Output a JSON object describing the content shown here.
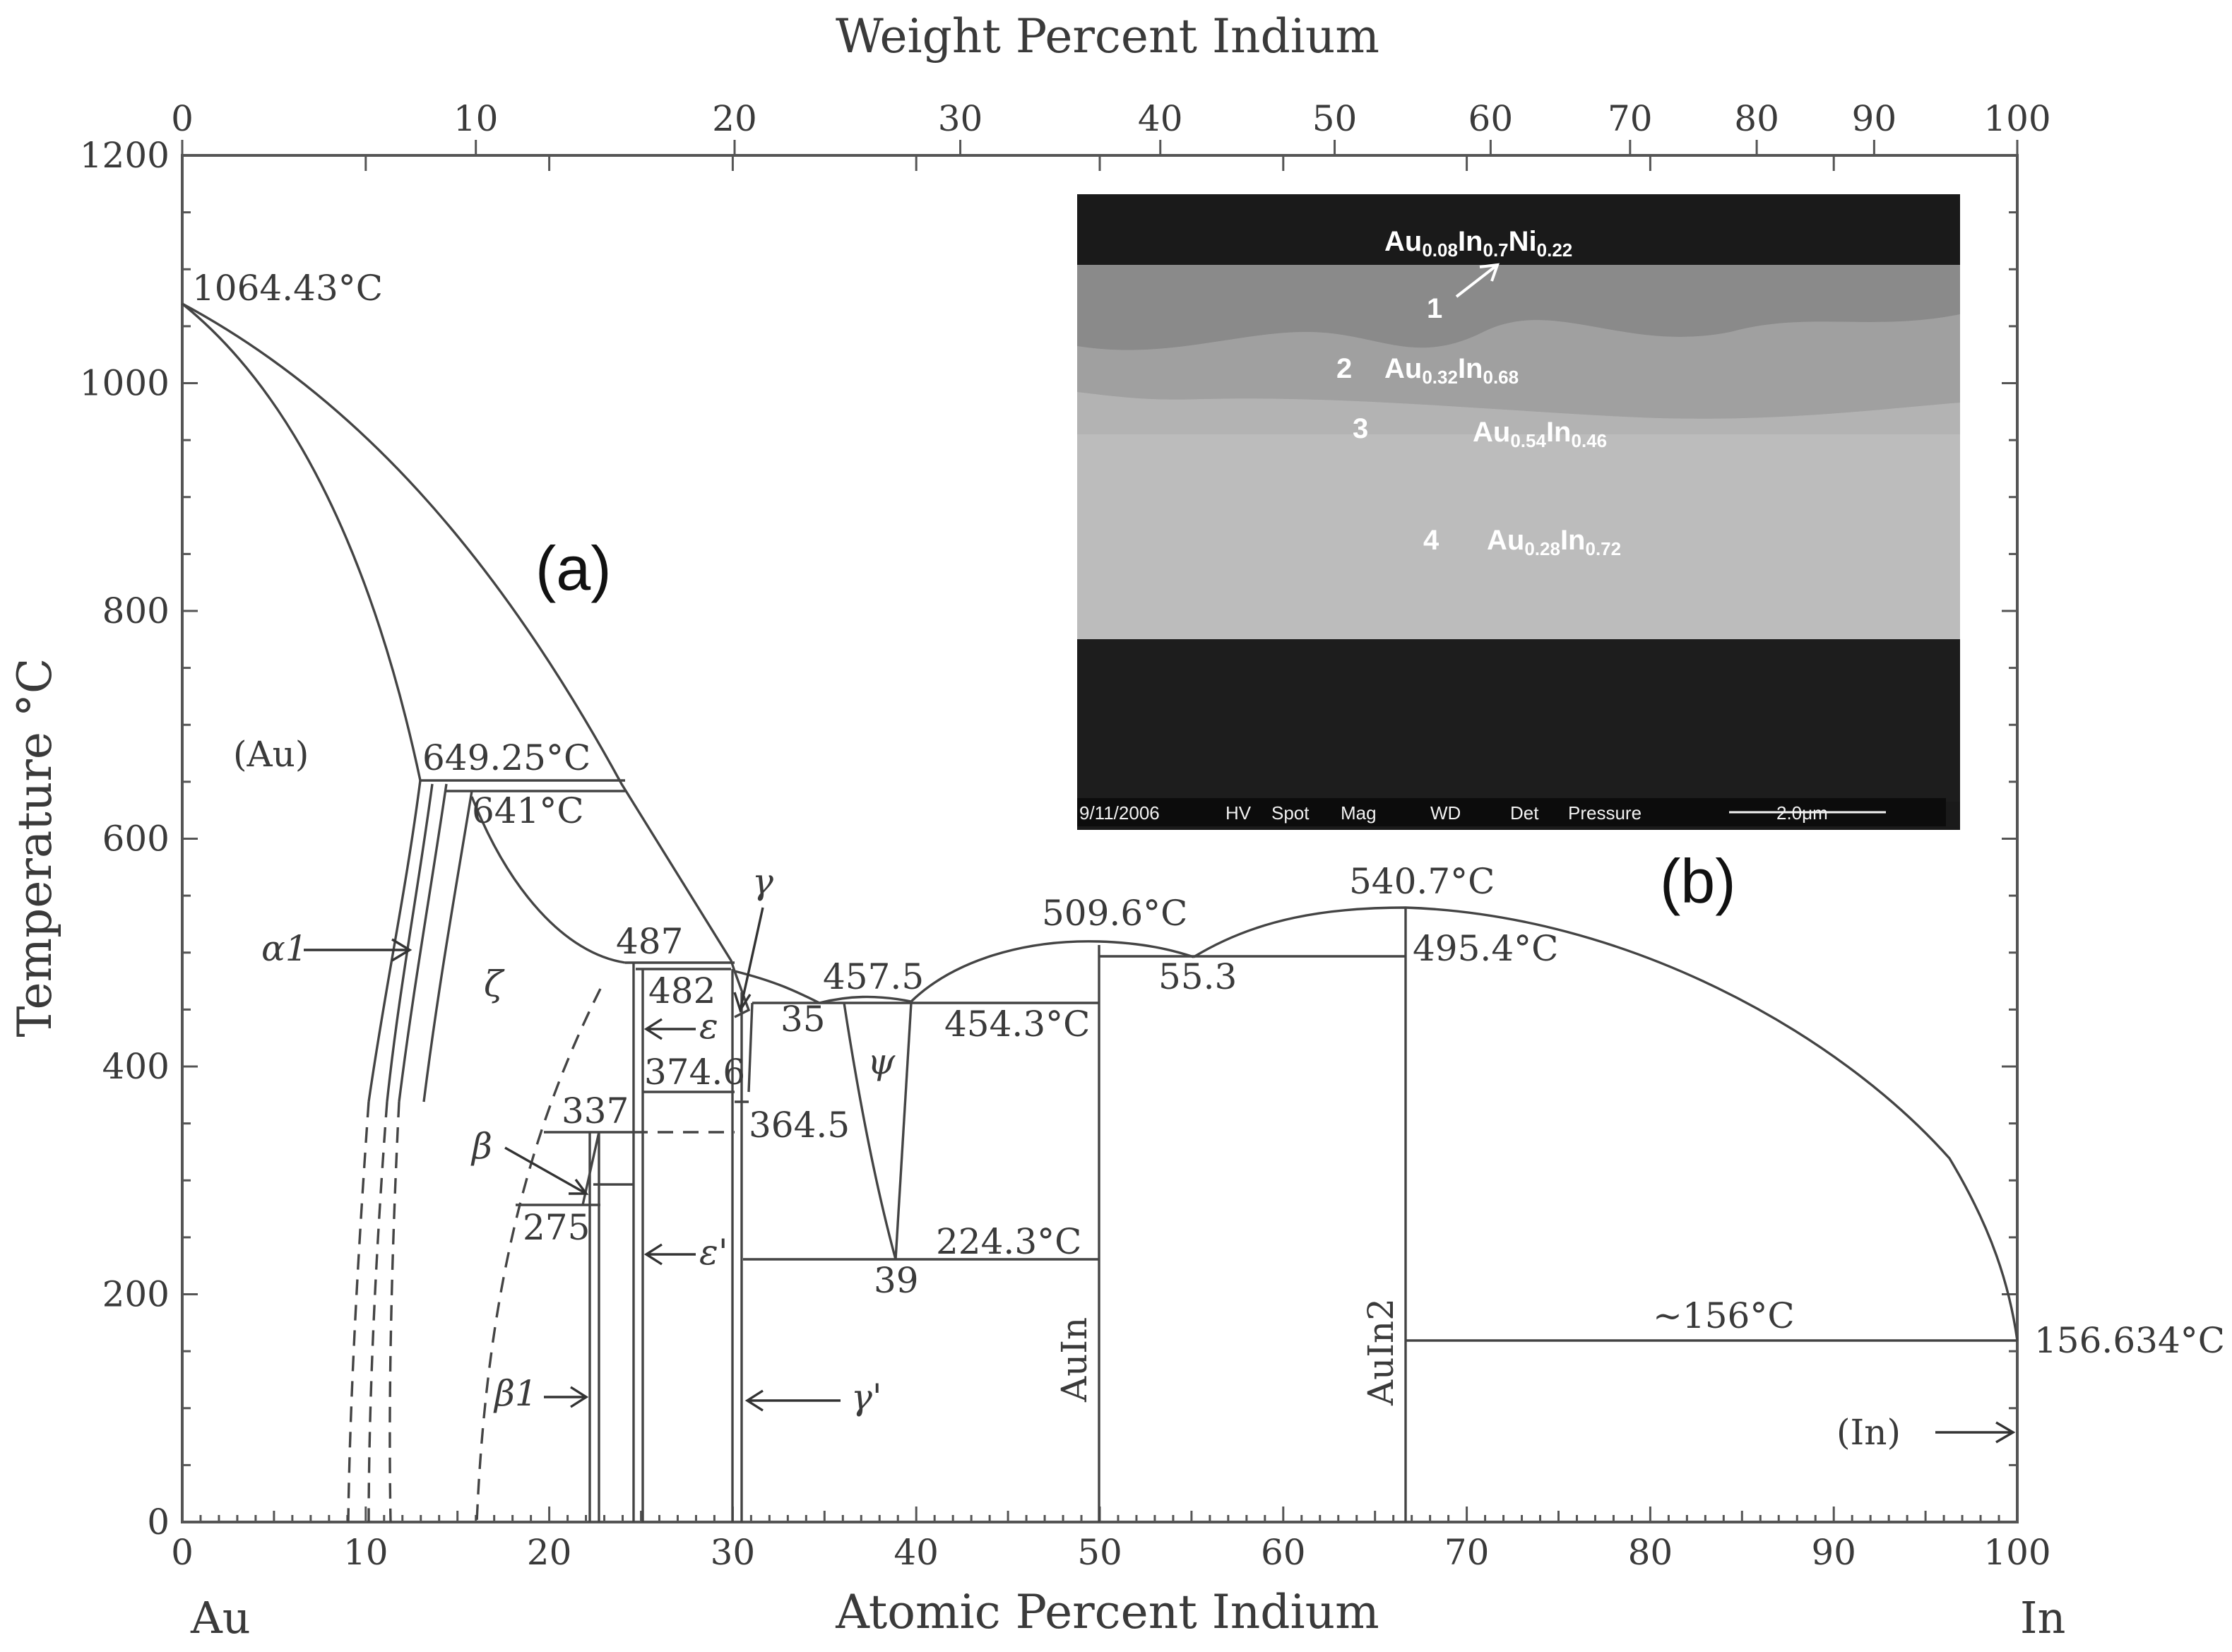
{
  "figure": {
    "top_axis": {
      "title": "Weight Percent Indium",
      "ticks": [
        "0",
        "10",
        "20",
        "30",
        "40",
        "50",
        "60",
        "70",
        "80",
        "90",
        "100"
      ],
      "tick_at_pct": [
        0,
        16.0,
        30.1,
        42.4,
        53.3,
        62.8,
        71.3,
        78.9,
        85.8,
        92.2,
        100
      ]
    },
    "bottom_axis": {
      "title": "Atomic Percent Indium",
      "ticks": [
        "0",
        "10",
        "20",
        "30",
        "40",
        "50",
        "60",
        "70",
        "80",
        "90",
        "100"
      ],
      "left_end": "Au",
      "right_end": "In"
    },
    "y_axis": {
      "title": "Temperature °C",
      "ticks": [
        "0",
        "200",
        "400",
        "600",
        "800",
        "1000",
        "1200"
      ],
      "range": [
        0,
        1200
      ]
    },
    "panel_a_label": "(a)",
    "panel_b_label": "(b)",
    "annotations": {
      "au_melt": "1064.43°C",
      "t649": "649.25°C",
      "t641": "641°C",
      "au_phase": "(Au)",
      "alpha1": "α1",
      "zeta": "ζ",
      "beta": "β",
      "beta1": "β1",
      "t487": "487",
      "t482": "482",
      "eps": "ε",
      "eps_prime": "ε'",
      "t374": "374.6",
      "t364": "364.5",
      "t337": "337",
      "t275": "275",
      "gamma": "γ",
      "gamma_prime": "γ'",
      "t457": "457.5",
      "t35": "35",
      "psi": "ψ",
      "t454": "454.3°C",
      "t39": "39",
      "t224": "224.3°C",
      "t509": "509.6°C",
      "t55": "55.3",
      "t540": "540.7°C",
      "t495": "495.4°C",
      "auin": "AuIn",
      "auin2": "AuIn2",
      "t156": "~156°C",
      "in_melt": "156.634°C",
      "in_phase": "(In)"
    },
    "inset": {
      "labels": [
        {
          "num": "1",
          "text": "Au0.08In0.7Ni0.22"
        },
        {
          "num": "2",
          "text": "Au0.32In0.68"
        },
        {
          "num": "3",
          "text": "Au0.54In0.46"
        },
        {
          "num": "4",
          "text": "Au0.28In0.72"
        }
      ],
      "info_bar": [
        "9/11/2006",
        "HV",
        "Spot",
        "Mag",
        "WD",
        "Det",
        "Pressure"
      ],
      "scale_bar": "2.0μm"
    }
  }
}
